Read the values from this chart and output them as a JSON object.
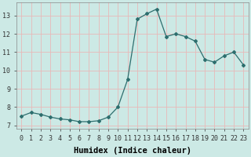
{
  "x": [
    0,
    1,
    2,
    3,
    4,
    5,
    6,
    7,
    8,
    9,
    10,
    11,
    12,
    13,
    14,
    15,
    16,
    17,
    18,
    19,
    20,
    21,
    22,
    23
  ],
  "y": [
    7.5,
    7.7,
    7.6,
    7.45,
    7.35,
    7.3,
    7.2,
    7.2,
    7.25,
    7.45,
    8.0,
    9.5,
    12.8,
    13.1,
    13.35,
    11.85,
    12.0,
    11.85,
    11.6,
    10.6,
    10.45,
    10.8,
    11.0,
    10.3
  ],
  "line_color": "#2d6e6e",
  "marker": "D",
  "markersize": 2.0,
  "linewidth": 0.9,
  "bg_color": "#cce9e5",
  "grid_color": "#e8b8b8",
  "xlabel": "Humidex (Indice chaleur)",
  "xlabel_fontsize": 7.5,
  "xlabel_bold": true,
  "ylabel_ticks": [
    7,
    8,
    9,
    10,
    11,
    12,
    13
  ],
  "xlim": [
    -0.5,
    23.5
  ],
  "ylim": [
    6.8,
    13.7
  ],
  "xtick_labels": [
    "0",
    "1",
    "2",
    "3",
    "4",
    "5",
    "6",
    "7",
    "8",
    "9",
    "10",
    "11",
    "12",
    "13",
    "14",
    "15",
    "16",
    "17",
    "18",
    "19",
    "20",
    "21",
    "22",
    "23"
  ],
  "tick_fontsize": 6.0
}
